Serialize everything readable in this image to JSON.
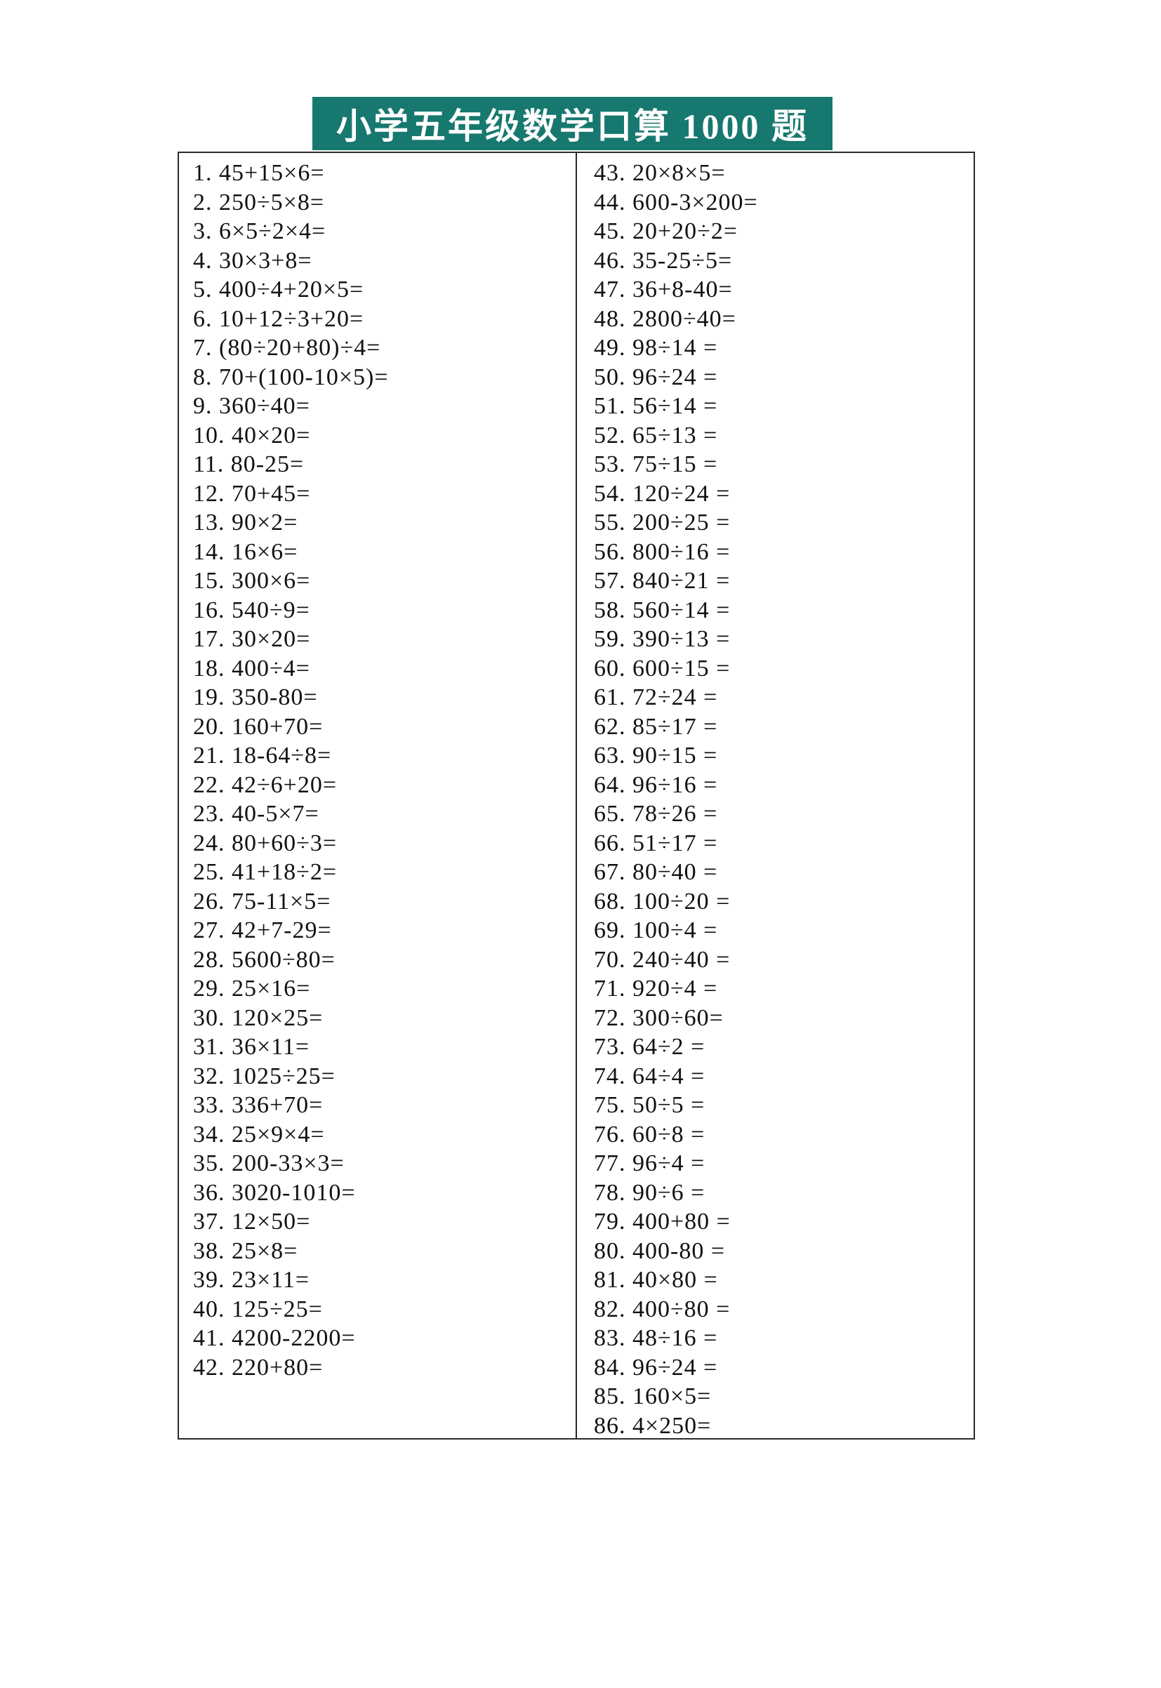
{
  "title": "小学五年级数学口算 1000 题",
  "colors": {
    "title_bg": "#17786F",
    "title_text": "#FFFFFF",
    "table_border": "#2B2B2B",
    "text": "#111111",
    "page_bg": "#FFFFFF"
  },
  "worksheet": {
    "columns": {
      "left": [
        "1. 45+15×6=",
        "2. 250÷5×8=",
        "3. 6×5÷2×4=",
        "4. 30×3+8=",
        "5. 400÷4+20×5=",
        "6. 10+12÷3+20=",
        "7. (80÷20+80)÷4=",
        "8. 70+(100-10×5)=",
        "9. 360÷40=",
        "10. 40×20=",
        "11. 80-25=",
        "12. 70+45=",
        "13. 90×2=",
        "14. 16×6=",
        "15. 300×6=",
        "16. 540÷9=",
        "17. 30×20=",
        "18. 400÷4=",
        "19. 350-80=",
        "20. 160+70=",
        "21. 18-64÷8=",
        "22. 42÷6+20=",
        "23. 40-5×7=",
        "24. 80+60÷3=",
        "25. 41+18÷2=",
        "26. 75-11×5=",
        "27. 42+7-29=",
        "28. 5600÷80=",
        "29. 25×16=",
        "30. 120×25=",
        "31. 36×11=",
        "32. 1025÷25=",
        "33. 336+70=",
        "34. 25×9×4=",
        "35. 200-33×3=",
        "36. 3020-1010=",
        "37. 12×50=",
        "38. 25×8=",
        "39. 23×11=",
        "40. 125÷25=",
        "41. 4200-2200=",
        "42. 220+80="
      ],
      "right": [
        "43. 20×8×5=",
        "44. 600-3×200=",
        "45. 20+20÷2=",
        "46. 35-25÷5=",
        "47. 36+8-40=",
        "48. 2800÷40=",
        "49. 98÷14 =",
        "50. 96÷24 =",
        "51. 56÷14 =",
        "52. 65÷13 =",
        "53. 75÷15 =",
        "54. 120÷24 =",
        "55. 200÷25 =",
        "56. 800÷16 =",
        "57. 840÷21 =",
        "58. 560÷14 =",
        "59. 390÷13 =",
        "60. 600÷15 =",
        "61. 72÷24 =",
        "62. 85÷17 =",
        "63. 90÷15 =",
        "64. 96÷16 =",
        "65. 78÷26 =",
        "66. 51÷17 =",
        "67. 80÷40 =",
        "68. 100÷20 =",
        "69. 100÷4 =",
        "70. 240÷40 =",
        "71. 920÷4 =",
        "72. 300÷60=",
        "73. 64÷2 =",
        "74. 64÷4 =",
        "75. 50÷5 =",
        "76. 60÷8 =",
        "77. 96÷4 =",
        "78. 90÷6 =",
        "79. 400+80 =",
        "80. 400-80 =",
        "81. 40×80 =",
        "82. 400÷80 =",
        "83. 48÷16 =",
        "84. 96÷24 =",
        "85. 160×5=",
        "86. 4×250="
      ]
    }
  }
}
